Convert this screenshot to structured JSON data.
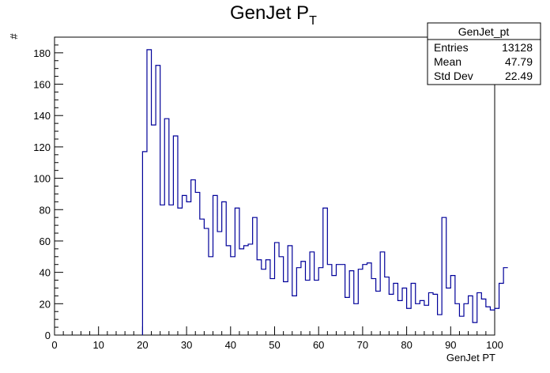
{
  "chart_data": {
    "type": "histogram",
    "title_main": "GenJet P",
    "title_sub": "T",
    "xlabel": "GenJet PT",
    "ylabel": "#",
    "xlim": [
      0,
      100
    ],
    "ylim": [
      0,
      190
    ],
    "x_ticks": [
      0,
      10,
      20,
      30,
      40,
      50,
      60,
      70,
      80,
      90,
      100
    ],
    "y_ticks": [
      0,
      20,
      40,
      60,
      80,
      100,
      120,
      140,
      160,
      180
    ],
    "bin_width": 1,
    "bins_start": 20,
    "values": [
      117,
      182,
      134,
      172,
      83,
      138,
      83,
      127,
      81,
      89,
      85,
      99,
      91,
      74,
      68,
      50,
      89,
      66,
      85,
      57,
      50,
      81,
      55,
      57,
      58,
      75,
      48,
      42,
      48,
      36,
      59,
      50,
      34,
      57,
      25,
      43,
      47,
      35,
      53,
      35,
      43,
      81,
      45,
      38,
      45,
      45,
      24,
      41,
      20,
      42,
      45,
      46,
      36,
      28,
      53,
      37,
      26,
      33,
      22,
      30,
      17,
      33,
      20,
      22,
      19,
      27,
      26,
      13,
      75,
      30,
      38,
      20,
      12,
      20,
      25,
      8,
      27,
      23,
      18,
      16,
      17,
      33,
      43
    ],
    "line_color": "#000099",
    "grid": false,
    "legend": "none",
    "stats_box": {
      "name": "GenJet_pt",
      "rows": [
        {
          "label": "Entries",
          "value": "13128"
        },
        {
          "label": "Mean",
          "value": "47.79"
        },
        {
          "label": "Std Dev",
          "value": "22.49"
        }
      ]
    }
  }
}
